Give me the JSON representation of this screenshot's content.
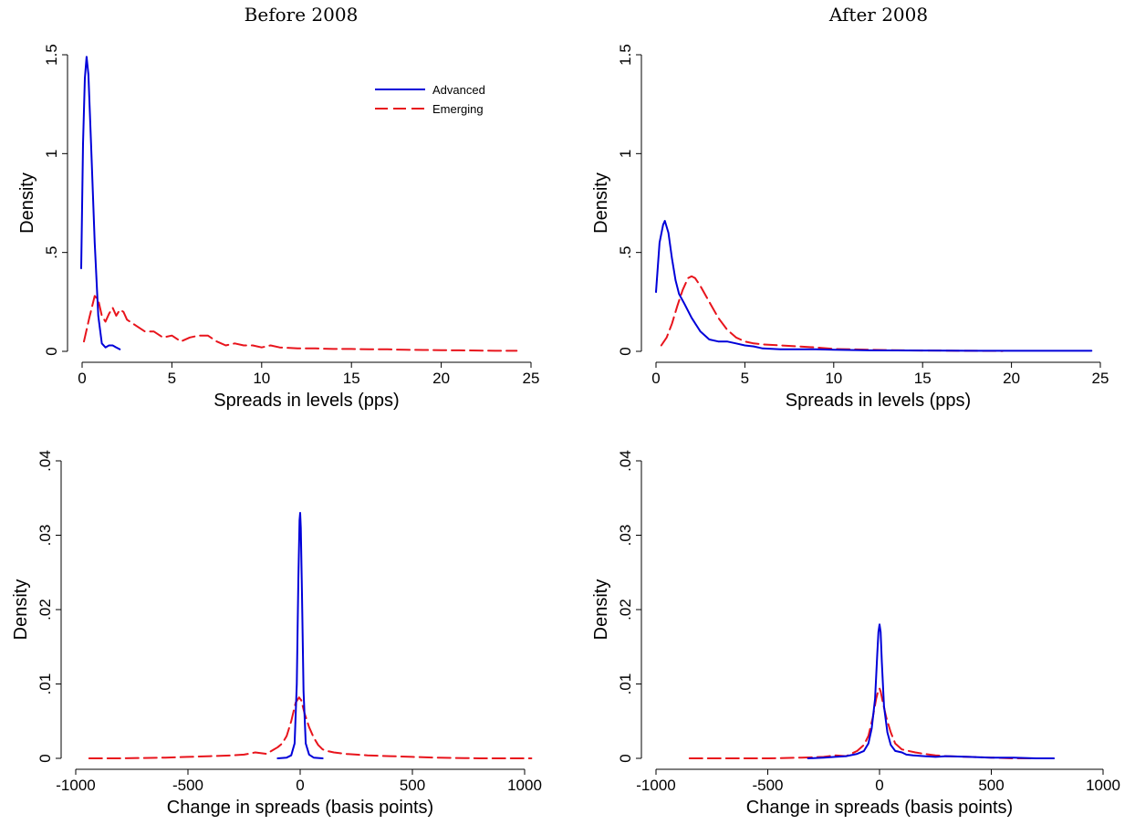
{
  "figure": {
    "column_titles": [
      "Before 2008",
      "After 2008"
    ]
  },
  "colors": {
    "advanced": "#0000d9",
    "emerging": "#e8141c"
  },
  "chart_data": [
    {
      "id": "p1",
      "type": "line",
      "title": "Before 2008",
      "xlabel": "Spreads in levels (pps)",
      "ylabel": "Density",
      "xlim": [
        0,
        25
      ],
      "ylim": [
        0,
        1.5
      ],
      "xticks": [
        0,
        5,
        10,
        15,
        20,
        25
      ],
      "xtick_labels": [
        "0",
        "5",
        "10",
        "15",
        "20",
        "25"
      ],
      "yticks": [
        0,
        0.5,
        1,
        1.5
      ],
      "ytick_labels": [
        "0",
        ".5",
        "1",
        "1.5"
      ],
      "grid": false,
      "legend": {
        "position": "top-right",
        "entries": [
          "Advanced",
          "Emerging"
        ]
      },
      "series": [
        {
          "name": "Advanced",
          "style": "solid",
          "x": [
            -0.05,
            0.05,
            0.15,
            0.25,
            0.35,
            0.5,
            0.7,
            0.9,
            1.1,
            1.3,
            1.5,
            1.7,
            1.9,
            2.1
          ],
          "y": [
            0.42,
            1.05,
            1.38,
            1.49,
            1.4,
            1.05,
            0.55,
            0.18,
            0.04,
            0.02,
            0.03,
            0.03,
            0.02,
            0.01
          ]
        },
        {
          "name": "Emerging",
          "style": "dashed",
          "x": [
            0.1,
            0.4,
            0.7,
            0.9,
            1.1,
            1.3,
            1.5,
            1.7,
            1.9,
            2.1,
            2.3,
            2.5,
            3,
            3.5,
            4,
            4.5,
            5,
            5.5,
            6,
            6.5,
            7,
            7.5,
            8,
            8.5,
            9,
            9.5,
            10,
            10.5,
            11,
            12,
            13,
            14,
            15,
            16,
            17,
            18,
            19,
            20,
            21,
            22,
            23,
            24.2
          ],
          "y": [
            0.05,
            0.17,
            0.28,
            0.26,
            0.18,
            0.15,
            0.19,
            0.22,
            0.18,
            0.21,
            0.2,
            0.16,
            0.13,
            0.1,
            0.1,
            0.07,
            0.08,
            0.05,
            0.07,
            0.08,
            0.08,
            0.05,
            0.03,
            0.04,
            0.03,
            0.03,
            0.02,
            0.03,
            0.02,
            0.015,
            0.015,
            0.012,
            0.012,
            0.01,
            0.01,
            0.008,
            0.007,
            0.006,
            0.005,
            0.004,
            0.003,
            0.003
          ]
        }
      ]
    },
    {
      "id": "p2",
      "type": "line",
      "title": "After 2008",
      "xlabel": "Spreads in levels (pps)",
      "ylabel": "Density",
      "xlim": [
        0,
        25
      ],
      "ylim": [
        0,
        1.5
      ],
      "xticks": [
        0,
        5,
        10,
        15,
        20,
        25
      ],
      "xtick_labels": [
        "0",
        "5",
        "10",
        "15",
        "20",
        "25"
      ],
      "yticks": [
        0,
        0.5,
        1,
        1.5
      ],
      "ytick_labels": [
        "0",
        ".5",
        "1",
        "1.5"
      ],
      "grid": false,
      "series": [
        {
          "name": "Advanced",
          "style": "solid",
          "x": [
            0,
            0.2,
            0.4,
            0.5,
            0.7,
            0.9,
            1.1,
            1.3,
            1.6,
            2,
            2.5,
            3,
            3.5,
            4,
            4.5,
            5,
            5.5,
            6,
            7,
            8,
            9,
            10,
            12,
            15,
            18,
            21,
            24.5
          ],
          "y": [
            0.3,
            0.55,
            0.64,
            0.66,
            0.6,
            0.47,
            0.36,
            0.29,
            0.24,
            0.17,
            0.1,
            0.06,
            0.05,
            0.05,
            0.04,
            0.03,
            0.025,
            0.015,
            0.01,
            0.01,
            0.01,
            0.008,
            0.005,
            0.004,
            0.003,
            0.003,
            0.003
          ]
        },
        {
          "name": "Emerging",
          "style": "dashed",
          "x": [
            0.3,
            0.6,
            0.9,
            1.2,
            1.5,
            1.8,
            2,
            2.2,
            2.5,
            3,
            3.5,
            4,
            4.5,
            5,
            5.5,
            6,
            7,
            8,
            9,
            10,
            11,
            12,
            13,
            14,
            15,
            16,
            17,
            18,
            19.5
          ],
          "y": [
            0.03,
            0.07,
            0.14,
            0.23,
            0.31,
            0.37,
            0.38,
            0.37,
            0.33,
            0.25,
            0.17,
            0.11,
            0.07,
            0.05,
            0.04,
            0.035,
            0.03,
            0.025,
            0.02,
            0.012,
            0.01,
            0.008,
            0.006,
            0.005,
            0.004,
            0.004,
            0.003,
            0.003,
            0.002
          ]
        }
      ]
    },
    {
      "id": "p3",
      "type": "line",
      "xlabel": "Change in spreads (basis points)",
      "ylabel": "Density",
      "xlim": [
        -1000,
        1000
      ],
      "ylim": [
        0,
        0.04
      ],
      "xticks": [
        -1000,
        -500,
        0,
        500,
        1000
      ],
      "xtick_labels": [
        "-1000",
        "-500",
        "0",
        "500",
        "1000"
      ],
      "yticks": [
        0,
        0.01,
        0.02,
        0.03,
        0.04
      ],
      "ytick_labels": [
        "0",
        ".01",
        ".02",
        ".03",
        ".04"
      ],
      "grid": false,
      "series": [
        {
          "name": "Advanced",
          "style": "solid",
          "x": [
            -100,
            -60,
            -40,
            -25,
            -15,
            -8,
            -3,
            0,
            3,
            8,
            15,
            25,
            40,
            60,
            100
          ],
          "y": [
            0,
            0.0001,
            0.0004,
            0.002,
            0.01,
            0.024,
            0.032,
            0.033,
            0.031,
            0.022,
            0.009,
            0.002,
            0.0005,
            0.0001,
            0
          ],
          "range": [
            -100,
            100
          ]
        },
        {
          "name": "Emerging",
          "style": "dashed",
          "x": [
            -940,
            -800,
            -600,
            -500,
            -400,
            -300,
            -250,
            -200,
            -150,
            -100,
            -80,
            -60,
            -40,
            -20,
            -5,
            0,
            5,
            20,
            40,
            60,
            80,
            100,
            120,
            150,
            200,
            250,
            300,
            400,
            500,
            600,
            800,
            1030
          ],
          "y": [
            0,
            0,
            0.0001,
            0.0002,
            0.0003,
            0.0004,
            0.0005,
            0.0008,
            0.0006,
            0.0015,
            0.002,
            0.003,
            0.005,
            0.0075,
            0.0082,
            0.008,
            0.0078,
            0.006,
            0.0042,
            0.0028,
            0.0018,
            0.0012,
            0.001,
            0.0008,
            0.0006,
            0.0005,
            0.0004,
            0.0003,
            0.0002,
            0.0001,
            0,
            0
          ]
        }
      ]
    },
    {
      "id": "p4",
      "type": "line",
      "xlabel": "Change in spreads (basis points)",
      "ylabel": "Density",
      "xlim": [
        -1000,
        1000
      ],
      "ylim": [
        0,
        0.04
      ],
      "xticks": [
        -1000,
        -500,
        0,
        500,
        1000
      ],
      "xtick_labels": [
        "-1000",
        "-500",
        "0",
        "500",
        "1000"
      ],
      "yticks": [
        0,
        0.01,
        0.02,
        0.03,
        0.04
      ],
      "ytick_labels": [
        "0",
        ".01",
        ".02",
        ".03",
        ".04"
      ],
      "grid": false,
      "series": [
        {
          "name": "Advanced",
          "style": "solid",
          "x": [
            -320,
            -250,
            -200,
            -150,
            -100,
            -70,
            -50,
            -35,
            -20,
            -10,
            -5,
            0,
            5,
            10,
            20,
            35,
            50,
            70,
            100,
            120,
            150,
            200,
            250,
            300,
            400,
            500,
            600,
            700,
            780
          ],
          "y": [
            0,
            0.0001,
            0.0002,
            0.0003,
            0.0006,
            0.001,
            0.002,
            0.004,
            0.008,
            0.014,
            0.017,
            0.018,
            0.017,
            0.013,
            0.007,
            0.0035,
            0.0018,
            0.001,
            0.0008,
            0.0005,
            0.0004,
            0.0003,
            0.0002,
            0.0003,
            0.0002,
            0.0001,
            0.0001,
            0,
            0
          ]
        },
        {
          "name": "Emerging",
          "style": "dashed",
          "x": [
            -850,
            -700,
            -500,
            -350,
            -250,
            -200,
            -150,
            -100,
            -70,
            -50,
            -30,
            -15,
            -5,
            0,
            5,
            15,
            30,
            50,
            70,
            100,
            130,
            160,
            200,
            250,
            300,
            400,
            500,
            600,
            700,
            780
          ],
          "y": [
            0,
            0,
            0,
            0.0001,
            0.0002,
            0.0004,
            0.0003,
            0.001,
            0.0018,
            0.003,
            0.0055,
            0.008,
            0.0092,
            0.0094,
            0.009,
            0.0075,
            0.0055,
            0.0035,
            0.002,
            0.0012,
            0.001,
            0.0008,
            0.0006,
            0.0004,
            0.0003,
            0.0002,
            0.0001,
            0,
            0,
            0
          ]
        }
      ]
    }
  ]
}
